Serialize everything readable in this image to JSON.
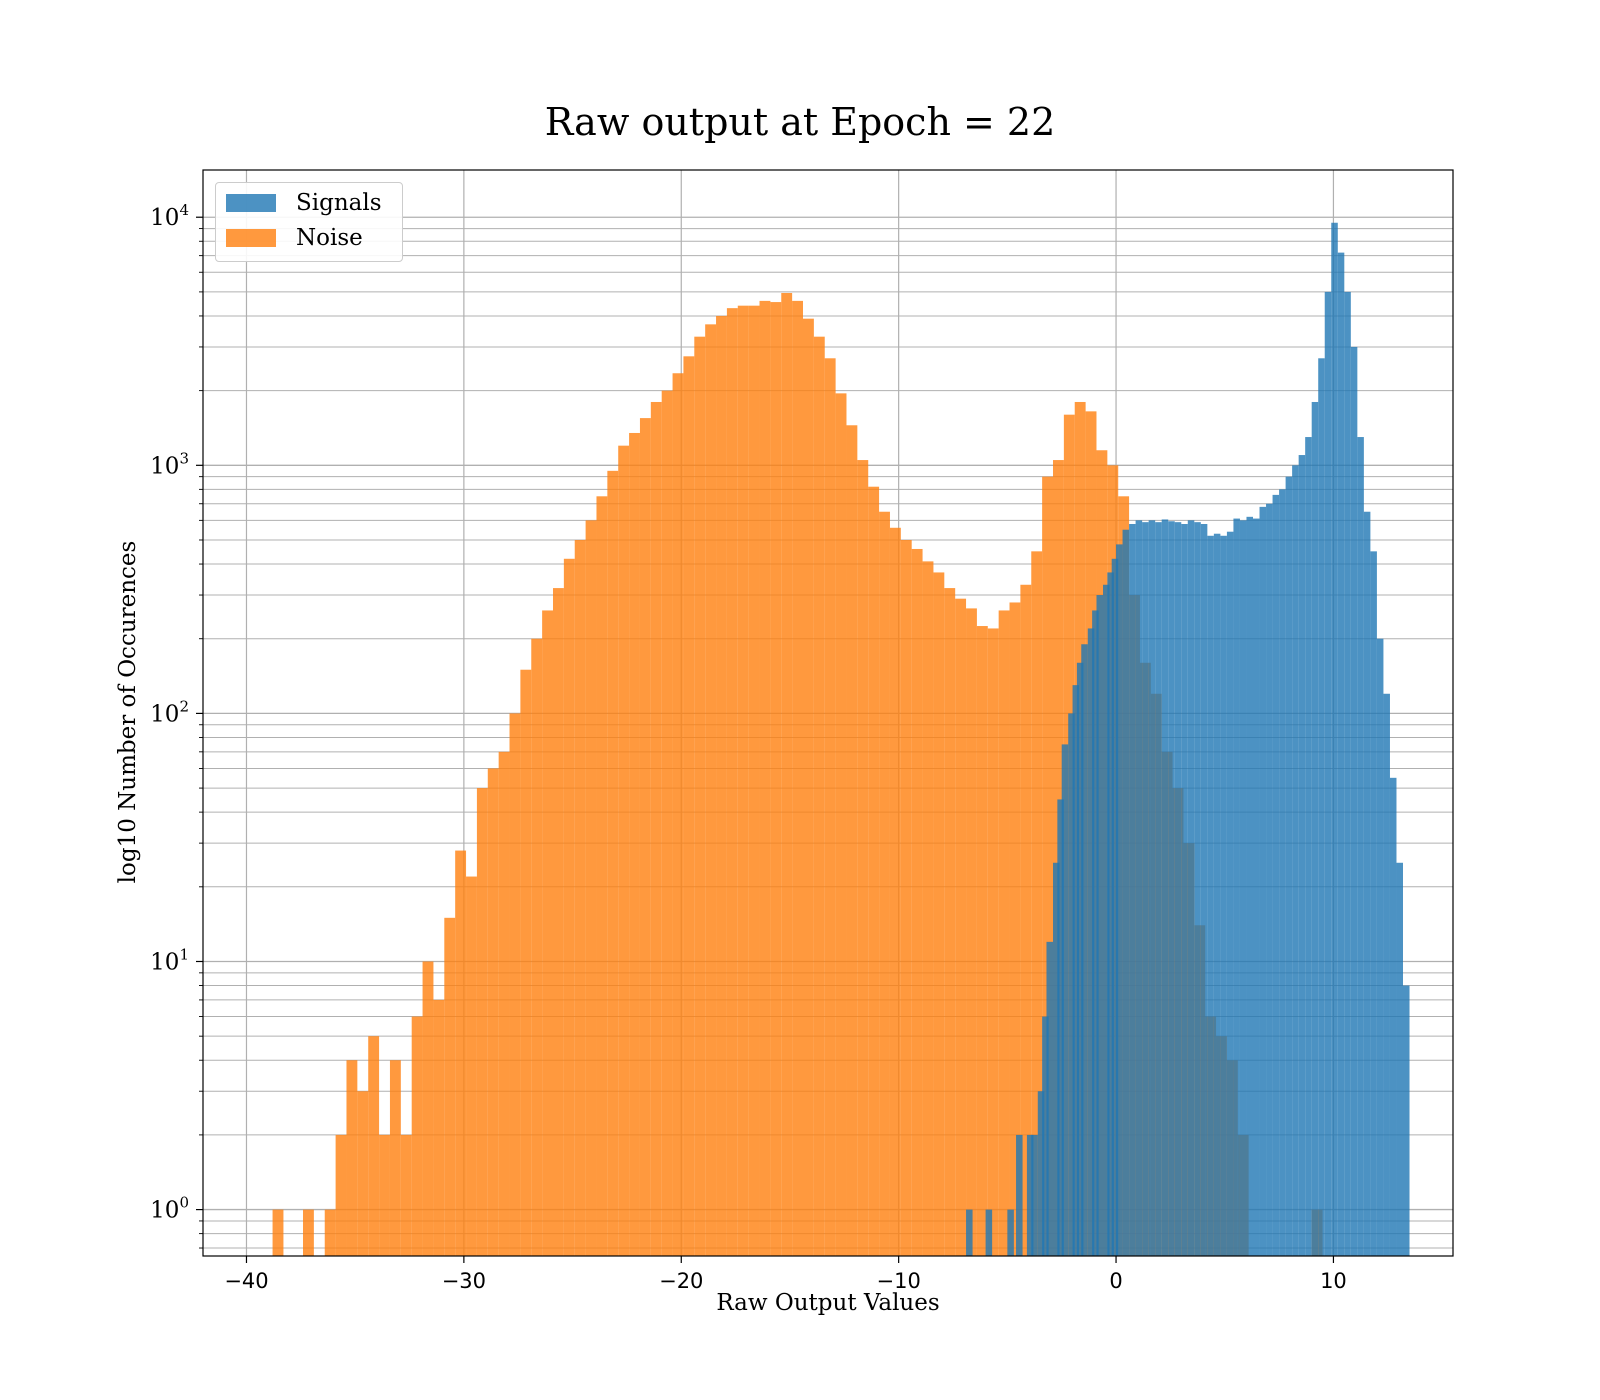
{
  "chart_data": {
    "type": "histogram",
    "title": "Raw output at Epoch = 22",
    "xlabel": "Raw Output Values",
    "ylabel": "log10 Number of Occurences",
    "xlim": [
      -42,
      15.5
    ],
    "ylim": [
      0.65,
      15500
    ],
    "yscale": "log",
    "grid": true,
    "legend_position": "upper-left",
    "xticks": [
      -40,
      -30,
      -20,
      -10,
      0,
      10
    ],
    "xtick_labels": [
      "−40",
      "−30",
      "−20",
      "−10",
      "0",
      "10"
    ],
    "yticks": [
      {
        "value": 1,
        "base": "10",
        "exp": "0"
      },
      {
        "value": 10,
        "base": "10",
        "exp": "1"
      },
      {
        "value": 100,
        "base": "10",
        "exp": "2"
      },
      {
        "value": 1000,
        "base": "10",
        "exp": "3"
      },
      {
        "value": 10000,
        "base": "10",
        "exp": "4"
      }
    ],
    "series": [
      {
        "name": "Signals",
        "color": "#1f77b4",
        "bins": [
          [
            -6.9,
            1
          ],
          [
            -6.0,
            1
          ],
          [
            -5.0,
            1
          ],
          [
            -4.6,
            2
          ],
          [
            -4.1,
            2
          ],
          [
            -3.9,
            2
          ],
          [
            -3.6,
            3
          ],
          [
            -3.4,
            6
          ],
          [
            -3.2,
            12
          ],
          [
            -2.9,
            25
          ],
          [
            -2.7,
            45
          ],
          [
            -2.5,
            75
          ],
          [
            -2.2,
            100
          ],
          [
            -2.0,
            130
          ],
          [
            -1.8,
            160
          ],
          [
            -1.6,
            190
          ],
          [
            -1.3,
            220
          ],
          [
            -1.1,
            260
          ],
          [
            -0.9,
            300
          ],
          [
            -0.6,
            330
          ],
          [
            -0.4,
            370
          ],
          [
            -0.2,
            420
          ],
          [
            0.0,
            480
          ],
          [
            0.3,
            550
          ],
          [
            0.6,
            580
          ],
          [
            0.9,
            600
          ],
          [
            1.2,
            590
          ],
          [
            1.5,
            600
          ],
          [
            1.8,
            590
          ],
          [
            2.1,
            605
          ],
          [
            2.4,
            595
          ],
          [
            2.7,
            590
          ],
          [
            3.0,
            580
          ],
          [
            3.3,
            600
          ],
          [
            3.6,
            590
          ],
          [
            3.9,
            580
          ],
          [
            4.2,
            520
          ],
          [
            4.5,
            530
          ],
          [
            4.8,
            520
          ],
          [
            5.1,
            540
          ],
          [
            5.4,
            610
          ],
          [
            5.7,
            600
          ],
          [
            6.0,
            620
          ],
          [
            6.3,
            610
          ],
          [
            6.6,
            680
          ],
          [
            6.9,
            700
          ],
          [
            7.2,
            760
          ],
          [
            7.5,
            800
          ],
          [
            7.8,
            900
          ],
          [
            8.1,
            1000
          ],
          [
            8.4,
            1100
          ],
          [
            8.7,
            1300
          ],
          [
            9.0,
            1800
          ],
          [
            9.3,
            2700
          ],
          [
            9.6,
            5000
          ],
          [
            9.9,
            9500
          ],
          [
            10.2,
            7200
          ],
          [
            10.5,
            5000
          ],
          [
            10.8,
            3000
          ],
          [
            11.1,
            1300
          ],
          [
            11.4,
            650
          ],
          [
            11.7,
            450
          ],
          [
            12.0,
            200
          ],
          [
            12.3,
            120
          ],
          [
            12.6,
            55
          ],
          [
            12.9,
            25
          ],
          [
            13.2,
            8
          ]
        ],
        "bin_width": 0.3
      },
      {
        "name": "Noise",
        "color": "#ff7f0e",
        "bins": [
          [
            -38.8,
            1
          ],
          [
            -38.2,
            0
          ],
          [
            -37.4,
            1
          ],
          [
            -36.4,
            1
          ],
          [
            -35.9,
            2
          ],
          [
            -35.4,
            4
          ],
          [
            -34.9,
            3
          ],
          [
            -34.4,
            5
          ],
          [
            -33.9,
            2
          ],
          [
            -33.4,
            4
          ],
          [
            -32.9,
            2
          ],
          [
            -32.4,
            6
          ],
          [
            -31.9,
            10
          ],
          [
            -31.4,
            7
          ],
          [
            -30.9,
            15
          ],
          [
            -30.4,
            28
          ],
          [
            -29.9,
            22
          ],
          [
            -29.4,
            50
          ],
          [
            -28.9,
            60
          ],
          [
            -28.4,
            70
          ],
          [
            -27.9,
            100
          ],
          [
            -27.4,
            150
          ],
          [
            -26.9,
            200
          ],
          [
            -26.4,
            260
          ],
          [
            -25.9,
            320
          ],
          [
            -25.4,
            420
          ],
          [
            -24.9,
            500
          ],
          [
            -24.4,
            600
          ],
          [
            -23.9,
            750
          ],
          [
            -23.4,
            950
          ],
          [
            -22.9,
            1200
          ],
          [
            -22.4,
            1350
          ],
          [
            -21.9,
            1550
          ],
          [
            -21.4,
            1800
          ],
          [
            -20.9,
            2000
          ],
          [
            -20.4,
            2350
          ],
          [
            -19.9,
            2750
          ],
          [
            -19.4,
            3300
          ],
          [
            -18.9,
            3700
          ],
          [
            -18.4,
            4000
          ],
          [
            -17.9,
            4300
          ],
          [
            -17.4,
            4400
          ],
          [
            -16.9,
            4400
          ],
          [
            -16.4,
            4600
          ],
          [
            -15.9,
            4550
          ],
          [
            -15.4,
            4950
          ],
          [
            -14.9,
            4600
          ],
          [
            -14.4,
            3900
          ],
          [
            -13.9,
            3300
          ],
          [
            -13.4,
            2700
          ],
          [
            -12.9,
            1950
          ],
          [
            -12.4,
            1450
          ],
          [
            -11.9,
            1050
          ],
          [
            -11.4,
            820
          ],
          [
            -10.9,
            650
          ],
          [
            -10.4,
            560
          ],
          [
            -9.9,
            500
          ],
          [
            -9.4,
            460
          ],
          [
            -8.9,
            410
          ],
          [
            -8.4,
            370
          ],
          [
            -7.9,
            320
          ],
          [
            -7.4,
            290
          ],
          [
            -6.9,
            265
          ],
          [
            -6.4,
            225
          ],
          [
            -5.9,
            220
          ],
          [
            -5.4,
            260
          ],
          [
            -4.9,
            280
          ],
          [
            -4.4,
            330
          ],
          [
            -3.9,
            450
          ],
          [
            -3.4,
            900
          ],
          [
            -2.9,
            1050
          ],
          [
            -2.4,
            1600
          ],
          [
            -1.9,
            1800
          ],
          [
            -1.4,
            1650
          ],
          [
            -0.9,
            1150
          ],
          [
            -0.4,
            1000
          ],
          [
            0.1,
            750
          ],
          [
            0.6,
            300
          ],
          [
            1.1,
            160
          ],
          [
            1.6,
            120
          ],
          [
            2.1,
            70
          ],
          [
            2.6,
            50
          ],
          [
            3.1,
            30
          ],
          [
            3.6,
            14
          ],
          [
            4.1,
            6
          ],
          [
            4.6,
            5
          ],
          [
            5.1,
            4
          ],
          [
            5.6,
            2
          ],
          [
            6.1,
            0
          ],
          [
            9.0,
            1
          ]
        ],
        "bin_width": 0.5
      }
    ]
  }
}
